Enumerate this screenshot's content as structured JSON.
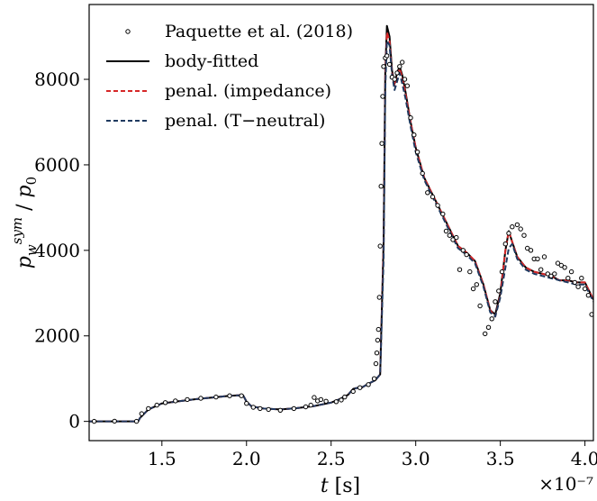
{
  "chart_data": {
    "type": "line",
    "title": "",
    "xlabel": "t [s]",
    "ylabel": "p_w^{sym} / p_0",
    "x_offset_text": "×10⁻⁷",
    "xlim": [
      1.07,
      4.05
    ],
    "ylim": [
      -450,
      9750
    ],
    "xticks": [
      1.5,
      2.0,
      2.5,
      3.0,
      3.5,
      4.0
    ],
    "xtick_labels": [
      "1.5",
      "2.0",
      "2.5",
      "3.0",
      "3.5",
      "4.0"
    ],
    "yticks": [
      0,
      2000,
      4000,
      6000,
      8000
    ],
    "ytick_labels": [
      "0",
      "2000",
      "4000",
      "6000",
      "8000"
    ],
    "grid": false,
    "legend_position": "top-left",
    "series": [
      {
        "name": "Paquette et al. (2018)",
        "style": "markers",
        "color": "#000000",
        "points": [
          [
            1.1,
            0
          ],
          [
            1.22,
            5
          ],
          [
            1.35,
            0
          ],
          [
            1.38,
            180
          ],
          [
            1.42,
            300
          ],
          [
            1.47,
            380
          ],
          [
            1.52,
            440
          ],
          [
            1.58,
            480
          ],
          [
            1.65,
            510
          ],
          [
            1.73,
            540
          ],
          [
            1.82,
            570
          ],
          [
            1.9,
            600
          ],
          [
            1.97,
            600
          ],
          [
            2.0,
            420
          ],
          [
            2.04,
            330
          ],
          [
            2.08,
            300
          ],
          [
            2.13,
            280
          ],
          [
            2.2,
            260
          ],
          [
            2.28,
            300
          ],
          [
            2.35,
            340
          ],
          [
            2.38,
            380
          ],
          [
            2.4,
            560
          ],
          [
            2.42,
            480
          ],
          [
            2.44,
            510
          ],
          [
            2.47,
            470
          ],
          [
            2.53,
            460
          ],
          [
            2.56,
            500
          ],
          [
            2.58,
            570
          ],
          [
            2.63,
            700
          ],
          [
            2.67,
            790
          ],
          [
            2.72,
            860
          ],
          [
            2.755,
            1000
          ],
          [
            2.765,
            1350
          ],
          [
            2.77,
            1600
          ],
          [
            2.775,
            1900
          ],
          [
            2.78,
            2150
          ],
          [
            2.785,
            2900
          ],
          [
            2.79,
            4100
          ],
          [
            2.795,
            5500
          ],
          [
            2.8,
            6500
          ],
          [
            2.805,
            7600
          ],
          [
            2.81,
            8300
          ],
          [
            2.82,
            8500
          ],
          [
            2.83,
            8550
          ],
          [
            2.845,
            8350
          ],
          [
            2.86,
            8050
          ],
          [
            2.875,
            8000
          ],
          [
            2.89,
            8150
          ],
          [
            2.905,
            8300
          ],
          [
            2.92,
            8400
          ],
          [
            2.935,
            8000
          ],
          [
            2.95,
            7850
          ],
          [
            2.97,
            7100
          ],
          [
            2.99,
            6700
          ],
          [
            3.01,
            6300
          ],
          [
            3.04,
            5800
          ],
          [
            3.07,
            5350
          ],
          [
            3.1,
            5250
          ],
          [
            3.13,
            5050
          ],
          [
            3.16,
            4850
          ],
          [
            3.18,
            4450
          ],
          [
            3.2,
            4350
          ],
          [
            3.22,
            4250
          ],
          [
            3.24,
            4300
          ],
          [
            3.26,
            3550
          ],
          [
            3.28,
            4000
          ],
          [
            3.3,
            3900
          ],
          [
            3.32,
            3500
          ],
          [
            3.34,
            3100
          ],
          [
            3.36,
            3200
          ],
          [
            3.38,
            2700
          ],
          [
            3.41,
            2050
          ],
          [
            3.43,
            2200
          ],
          [
            3.45,
            2400
          ],
          [
            3.47,
            2800
          ],
          [
            3.49,
            3050
          ],
          [
            3.51,
            3500
          ],
          [
            3.53,
            4150
          ],
          [
            3.55,
            4400
          ],
          [
            3.57,
            4550
          ],
          [
            3.6,
            4600
          ],
          [
            3.62,
            4500
          ],
          [
            3.64,
            4350
          ],
          [
            3.66,
            4050
          ],
          [
            3.68,
            4000
          ],
          [
            3.7,
            3800
          ],
          [
            3.72,
            3800
          ],
          [
            3.74,
            3550
          ],
          [
            3.76,
            3850
          ],
          [
            3.78,
            3450
          ],
          [
            3.8,
            3400
          ],
          [
            3.82,
            3450
          ],
          [
            3.84,
            3700
          ],
          [
            3.86,
            3650
          ],
          [
            3.88,
            3600
          ],
          [
            3.9,
            3350
          ],
          [
            3.92,
            3500
          ],
          [
            3.94,
            3250
          ],
          [
            3.96,
            3150
          ],
          [
            3.98,
            3350
          ],
          [
            4.0,
            3100
          ],
          [
            4.02,
            2950
          ],
          [
            4.04,
            2500
          ]
        ]
      },
      {
        "name": "body-fitted",
        "style": "solid",
        "color": "#000000",
        "x": [
          1.07,
          1.36,
          1.37,
          1.42,
          1.5,
          1.6,
          1.7,
          1.8,
          1.9,
          1.95,
          1.98,
          2.0,
          2.03,
          2.1,
          2.2,
          2.3,
          2.4,
          2.5,
          2.55,
          2.6,
          2.63,
          2.65,
          2.68,
          2.72,
          2.76,
          2.79,
          2.81,
          2.82,
          2.83,
          2.845,
          2.86,
          2.875,
          2.89,
          2.905,
          2.92,
          2.94,
          2.97,
          3.0,
          3.05,
          3.1,
          3.15,
          3.2,
          3.25,
          3.3,
          3.35,
          3.4,
          3.44,
          3.47,
          3.5,
          3.53,
          3.55,
          3.57,
          3.6,
          3.65,
          3.7,
          3.75,
          3.8,
          3.85,
          3.9,
          3.95,
          4.0,
          4.05
        ],
        "y": [
          0,
          0,
          80,
          280,
          420,
          470,
          520,
          560,
          600,
          610,
          610,
          460,
          350,
          300,
          280,
          310,
          360,
          440,
          520,
          620,
          760,
          780,
          790,
          880,
          960,
          1100,
          4200,
          8200,
          9250,
          9000,
          8200,
          7900,
          8150,
          8300,
          8100,
          7700,
          7000,
          6400,
          5700,
          5300,
          4900,
          4500,
          4100,
          3950,
          3750,
          3200,
          2600,
          2500,
          3000,
          4000,
          4450,
          4200,
          3850,
          3600,
          3500,
          3450,
          3400,
          3300,
          3300,
          3250,
          3250,
          2850
        ]
      },
      {
        "name": "penal. (impedance)",
        "style": "dashed",
        "color": "#d62728",
        "x": [
          1.07,
          1.36,
          1.37,
          1.42,
          1.5,
          1.6,
          1.7,
          1.8,
          1.9,
          1.95,
          1.98,
          2.0,
          2.03,
          2.1,
          2.2,
          2.3,
          2.4,
          2.5,
          2.55,
          2.6,
          2.63,
          2.65,
          2.68,
          2.72,
          2.76,
          2.79,
          2.81,
          2.82,
          2.83,
          2.845,
          2.86,
          2.875,
          2.89,
          2.905,
          2.92,
          2.94,
          2.97,
          3.0,
          3.05,
          3.1,
          3.15,
          3.2,
          3.25,
          3.3,
          3.35,
          3.4,
          3.44,
          3.47,
          3.5,
          3.53,
          3.55,
          3.57,
          3.6,
          3.65,
          3.7,
          3.75,
          3.8,
          3.85,
          3.9,
          3.95,
          4.0,
          4.05
        ],
        "y": [
          0,
          0,
          80,
          280,
          420,
          470,
          520,
          560,
          600,
          610,
          610,
          460,
          350,
          300,
          280,
          310,
          360,
          440,
          520,
          620,
          760,
          780,
          790,
          880,
          960,
          1100,
          4100,
          8100,
          9100,
          8900,
          8150,
          7850,
          8100,
          8250,
          8050,
          7650,
          7000,
          6400,
          5700,
          5300,
          4900,
          4500,
          4100,
          3950,
          3750,
          3200,
          2600,
          2450,
          2950,
          4000,
          4450,
          4200,
          3850,
          3600,
          3500,
          3450,
          3400,
          3300,
          3300,
          3250,
          3250,
          2850
        ]
      },
      {
        "name": "penal. (T−neutral)",
        "style": "dashed",
        "color": "#1f3a60",
        "x": [
          1.07,
          1.36,
          1.37,
          1.42,
          1.5,
          1.6,
          1.7,
          1.8,
          1.9,
          1.95,
          1.98,
          2.0,
          2.03,
          2.1,
          2.2,
          2.3,
          2.4,
          2.5,
          2.55,
          2.6,
          2.63,
          2.65,
          2.68,
          2.72,
          2.76,
          2.79,
          2.81,
          2.82,
          2.83,
          2.845,
          2.86,
          2.875,
          2.89,
          2.905,
          2.92,
          2.94,
          2.97,
          3.0,
          3.05,
          3.1,
          3.15,
          3.2,
          3.25,
          3.3,
          3.35,
          3.4,
          3.44,
          3.47,
          3.5,
          3.53,
          3.55,
          3.57,
          3.6,
          3.65,
          3.7,
          3.75,
          3.8,
          3.85,
          3.9,
          3.95,
          4.0,
          4.05
        ],
        "y": [
          0,
          0,
          80,
          280,
          420,
          470,
          520,
          560,
          600,
          610,
          610,
          460,
          350,
          300,
          280,
          310,
          360,
          440,
          520,
          620,
          760,
          780,
          790,
          880,
          960,
          1100,
          3800,
          7800,
          8900,
          8800,
          8100,
          7750,
          7950,
          8150,
          7900,
          7550,
          6900,
          6300,
          5650,
          5250,
          4850,
          4450,
          4050,
          3900,
          3700,
          3150,
          2550,
          2450,
          2900,
          3600,
          4050,
          4150,
          3800,
          3550,
          3450,
          3400,
          3350,
          3300,
          3250,
          3200,
          3200,
          2800
        ]
      }
    ]
  }
}
